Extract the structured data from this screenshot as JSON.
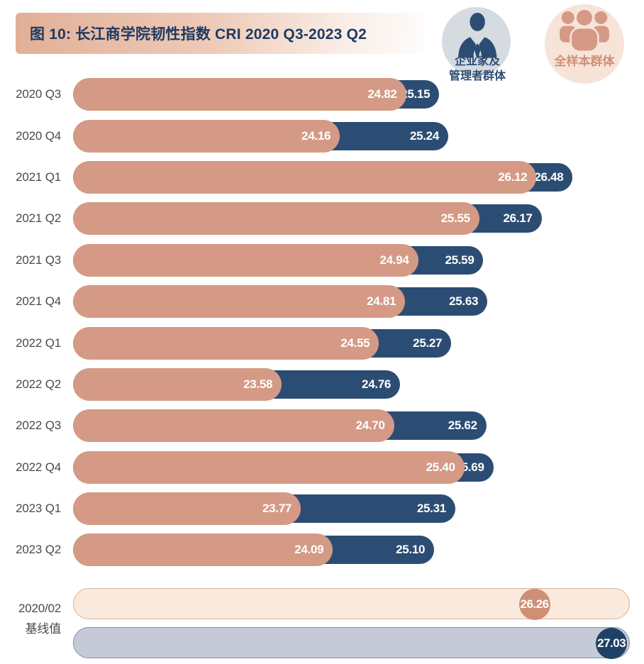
{
  "header": {
    "title": "图 10: 长江商学院韧性指数 CRI 2020 Q3-2023 Q2"
  },
  "legend": {
    "managers": {
      "label_line1": "企业家及",
      "label_line2": "管理者群体",
      "icon": "businessman-icon"
    },
    "full_sample": {
      "label": "全样本群体",
      "icon": "people-group-icon"
    }
  },
  "colors": {
    "manager_bar": "#d49a85",
    "full_sample_bar": "#2c4d73",
    "title_text": "#1d3a63",
    "axis_label_text": "#4a4a4a",
    "value_text": "#ffffff",
    "baseline_manager_fill": "#faeadd",
    "baseline_manager_border": "#d3b49f",
    "baseline_manager_dot": "#cf8f76",
    "baseline_full_fill": "#c6cad7",
    "baseline_full_border": "#8590a3",
    "baseline_full_dot": "#1f4166",
    "legend_manager_circle": "#d6dae1",
    "legend_full_circle": "#f7e4d8"
  },
  "chart_data": {
    "type": "bar",
    "orientation": "horizontal",
    "title": "图 10: 长江商学院韧性指数 CRI 2020 Q3-2023 Q2",
    "legend_position": "top-right",
    "axis": {
      "min": 21.5,
      "max": 27.05,
      "grid": false,
      "value_labels_shown": true
    },
    "categories": [
      "2020 Q3",
      "2020 Q4",
      "2021 Q1",
      "2021 Q2",
      "2021 Q3",
      "2021 Q4",
      "2022 Q1",
      "2022 Q2",
      "2022 Q3",
      "2022 Q4",
      "2023 Q1",
      "2023 Q2"
    ],
    "series": [
      {
        "name": "企业家及管理者群体",
        "values": [
          24.82,
          24.16,
          26.12,
          25.55,
          24.94,
          24.81,
          24.55,
          23.58,
          24.7,
          25.4,
          23.77,
          24.09
        ],
        "labels": [
          "24.82",
          "24.16",
          "26.12",
          "25.55",
          "24.94",
          "24.81",
          "24.55",
          "23.58",
          "24.70",
          "25.40",
          "23.77",
          "24.09"
        ]
      },
      {
        "name": "全样本群体",
        "values": [
          25.15,
          25.24,
          26.48,
          26.17,
          25.59,
          25.63,
          25.27,
          24.76,
          25.62,
          25.69,
          25.31,
          25.1
        ],
        "labels": [
          "25.15",
          "25.24",
          "26.48",
          "26.17",
          "25.59",
          "25.63",
          "25.27",
          "24.76",
          "25.62",
          "25.69",
          "25.31",
          "25.10"
        ]
      }
    ],
    "baseline": {
      "label_line1": "2020/02",
      "label_line2": "基线值",
      "rows": [
        {
          "name": "企业家及管理者群体",
          "value": 26.26,
          "label": "26.26"
        },
        {
          "name": "全样本群体",
          "value": 27.03,
          "label": "27.03"
        }
      ]
    }
  }
}
